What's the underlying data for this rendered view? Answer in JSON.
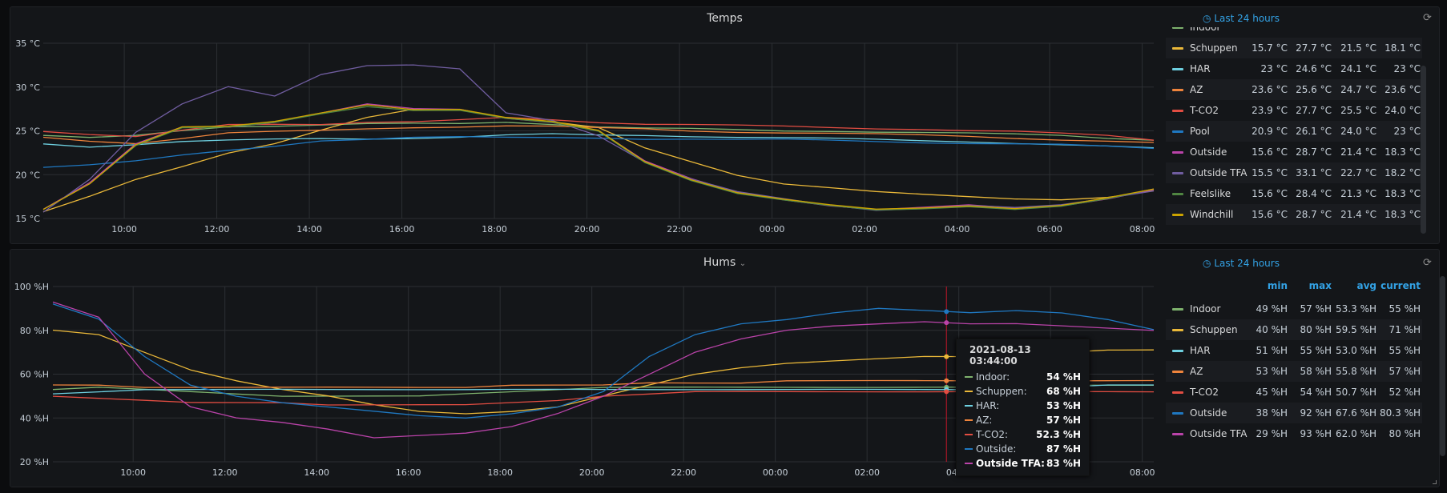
{
  "colors": {
    "Indoor": "#7eb26d",
    "Schuppen": "#eab839",
    "HAR": "#6ed0e0",
    "AZ": "#ef843c",
    "T-CO2": "#e24d42",
    "Pool": "#1f78c1",
    "Outside": "#ba43a9",
    "Outside TFA": "#705da0",
    "Feelslike": "#508642",
    "Windchill": "#cca300",
    "Outside_hum": "#1f78c1",
    "Outside TFA_hum": "#ba43a9",
    "accent": "#33a2e5"
  },
  "icons": {
    "clock": "clock-icon",
    "refresh": "refresh-icon",
    "chevron": "chevron-down-icon"
  },
  "temps": {
    "title": "Temps",
    "time_range": "Last 24 hours",
    "legend": {
      "rows": [
        {
          "name": "Indoor",
          "color": "#7eb26d",
          "min": "",
          "max": "",
          "avg": "",
          "current": ""
        },
        {
          "name": "Schuppen",
          "color": "#eab839",
          "min": "15.7 °C",
          "max": "27.7 °C",
          "avg": "21.5 °C",
          "current": "18.1 °C"
        },
        {
          "name": "HAR",
          "color": "#6ed0e0",
          "min": "23 °C",
          "max": "24.6 °C",
          "avg": "24.1 °C",
          "current": "23 °C"
        },
        {
          "name": "AZ",
          "color": "#ef843c",
          "min": "23.6 °C",
          "max": "25.6 °C",
          "avg": "24.7 °C",
          "current": "23.6 °C"
        },
        {
          "name": "T-CO2",
          "color": "#e24d42",
          "min": "23.9 °C",
          "max": "27.7 °C",
          "avg": "25.5 °C",
          "current": "24.0 °C"
        },
        {
          "name": "Pool",
          "color": "#1f78c1",
          "min": "20.9 °C",
          "max": "26.1 °C",
          "avg": "24.0 °C",
          "current": "23 °C"
        },
        {
          "name": "Outside",
          "color": "#ba43a9",
          "min": "15.6 °C",
          "max": "28.7 °C",
          "avg": "21.4 °C",
          "current": "18.3 °C"
        },
        {
          "name": "Outside TFA",
          "color": "#705da0",
          "min": "15.5 °C",
          "max": "33.1 °C",
          "avg": "22.7 °C",
          "current": "18.2 °C"
        },
        {
          "name": "Feelslike",
          "color": "#508642",
          "min": "15.6 °C",
          "max": "28.4 °C",
          "avg": "21.3 °C",
          "current": "18.3 °C"
        },
        {
          "name": "Windchill",
          "color": "#cca300",
          "min": "15.6 °C",
          "max": "28.7 °C",
          "avg": "21.4 °C",
          "current": "18.3 °C"
        }
      ]
    }
  },
  "hums": {
    "title": "Hums",
    "time_range": "Last 24 hours",
    "legend": {
      "headers": {
        "min": "min",
        "max": "max",
        "avg": "avg",
        "current": "current"
      },
      "rows": [
        {
          "name": "Indoor",
          "color": "#7eb26d",
          "min": "49 %H",
          "max": "57 %H",
          "avg": "53.3 %H",
          "current": "55 %H"
        },
        {
          "name": "Schuppen",
          "color": "#eab839",
          "min": "40 %H",
          "max": "80 %H",
          "avg": "59.5 %H",
          "current": "71 %H"
        },
        {
          "name": "HAR",
          "color": "#6ed0e0",
          "min": "51 %H",
          "max": "55 %H",
          "avg": "53.0 %H",
          "current": "55 %H"
        },
        {
          "name": "AZ",
          "color": "#ef843c",
          "min": "53 %H",
          "max": "58 %H",
          "avg": "55.8 %H",
          "current": "57 %H"
        },
        {
          "name": "T-CO2",
          "color": "#e24d42",
          "min": "45 %H",
          "max": "54 %H",
          "avg": "50.7 %H",
          "current": "52 %H"
        },
        {
          "name": "Outside",
          "color": "#1f78c1",
          "min": "38 %H",
          "max": "92 %H",
          "avg": "67.6 %H",
          "current": "80.3 %H"
        },
        {
          "name": "Outside TFA",
          "color": "#ba43a9",
          "min": "29 %H",
          "max": "93 %H",
          "avg": "62.0 %H",
          "current": "80 %H"
        }
      ]
    },
    "tooltip": {
      "time": "2021-08-13 03:44:00",
      "hover_hour_offset": 19.48,
      "rows": [
        {
          "name": "Indoor:",
          "color": "#7eb26d",
          "value": "54 %H"
        },
        {
          "name": "Schuppen:",
          "color": "#eab839",
          "value": "68 %H"
        },
        {
          "name": "HAR:",
          "color": "#6ed0e0",
          "value": "53 %H"
        },
        {
          "name": "AZ:",
          "color": "#ef843c",
          "value": "57 %H"
        },
        {
          "name": "T-CO2:",
          "color": "#e24d42",
          "value": "52.3 %H"
        },
        {
          "name": "Outside:",
          "color": "#1f78c1",
          "value": "87 %H"
        },
        {
          "name": "Outside TFA:",
          "color": "#ba43a9",
          "value": "83 %H",
          "bold": true
        }
      ]
    }
  },
  "chart_data": [
    {
      "type": "line",
      "title": "Temps",
      "x_start": "08:15",
      "x_step_hours": 1,
      "xticks": [
        "10:00",
        "12:00",
        "14:00",
        "16:00",
        "18:00",
        "20:00",
        "22:00",
        "00:00",
        "02:00",
        "04:00",
        "06:00",
        "08:00"
      ],
      "xtick_hour_offsets": [
        1.75,
        3.75,
        5.75,
        7.75,
        9.75,
        11.75,
        13.75,
        15.75,
        17.75,
        19.75,
        21.75,
        23.75
      ],
      "yticks": [
        "15 °C",
        "20 °C",
        "25 °C",
        "30 °C",
        "35 °C"
      ],
      "ytick_values": [
        15,
        20,
        25,
        30,
        35
      ],
      "ylim": [
        15,
        35
      ],
      "grid": true,
      "legend": "right",
      "series": [
        {
          "name": "Indoor",
          "color": "#7eb26d",
          "values": [
            24.5,
            24.2,
            24.4,
            25,
            25.5,
            25.6,
            25.7,
            25.8,
            25.8,
            25.8,
            26,
            25.8,
            25.5,
            25.3,
            25.2,
            25.1,
            25,
            25,
            24.9,
            24.8,
            24.7,
            24.6,
            24.5,
            24.2,
            24
          ]
        },
        {
          "name": "Schuppen",
          "color": "#eab839",
          "values": [
            15.7,
            17.5,
            19.5,
            21,
            22.5,
            23.5,
            25,
            26.5,
            27.5,
            27.5,
            26.5,
            26,
            25.3,
            23,
            21.5,
            20,
            19,
            18.5,
            18,
            17.7,
            17.5,
            17.3,
            17.2,
            17.4,
            18.1
          ]
        },
        {
          "name": "HAR",
          "color": "#6ed0e0",
          "values": [
            23.5,
            23.2,
            23.5,
            23.8,
            23.9,
            24,
            24.1,
            24.1,
            24.2,
            24.3,
            24.5,
            24.6,
            24.5,
            24.5,
            24.4,
            24.3,
            24.2,
            24.1,
            24,
            23.9,
            23.8,
            23.6,
            23.4,
            23.2,
            23
          ]
        },
        {
          "name": "AZ",
          "color": "#ef843c",
          "values": [
            24.2,
            23.8,
            23.6,
            24.2,
            24.8,
            24.9,
            25,
            25.2,
            25.4,
            25.5,
            25.6,
            25.5,
            25.3,
            25.2,
            25,
            24.9,
            24.8,
            24.7,
            24.6,
            24.5,
            24.4,
            24.2,
            24,
            23.8,
            23.6
          ]
        },
        {
          "name": "T-CO2",
          "color": "#e24d42",
          "values": [
            25,
            24.6,
            24.3,
            25,
            25.7,
            25.8,
            25.8,
            26,
            26,
            26.2,
            26.5,
            26.3,
            26,
            25.8,
            25.7,
            25.6,
            25.5,
            25.4,
            25.3,
            25.2,
            25,
            24.9,
            24.7,
            24.5,
            24
          ]
        },
        {
          "name": "Pool",
          "color": "#1f78c1",
          "values": [
            20.9,
            21.2,
            21.6,
            22.2,
            22.7,
            23.2,
            23.9,
            24.1,
            24.3,
            24.3,
            24.2,
            24.2,
            24.2,
            24.1,
            24.1,
            24,
            24,
            23.9,
            23.8,
            23.7,
            23.6,
            23.5,
            23.4,
            23.2,
            23
          ]
        },
        {
          "name": "Outside",
          "color": "#ba43a9",
          "values": [
            16,
            19,
            23.5,
            25.5,
            25.5,
            26,
            27,
            28,
            27.5,
            27.5,
            26.5,
            26,
            25,
            21.5,
            19.5,
            18,
            17.2,
            16.5,
            16,
            16.2,
            16.5,
            16.2,
            16.5,
            17.3,
            18.3
          ]
        },
        {
          "name": "Outside TFA",
          "color": "#705da0",
          "values": [
            15.8,
            19.5,
            24.8,
            28,
            30,
            29,
            31.5,
            32.5,
            32.5,
            32,
            27,
            26.2,
            24.5,
            21.5,
            19.5,
            18,
            17.2,
            16.5,
            16,
            16.2,
            16.5,
            16.2,
            16.5,
            17.3,
            18.2
          ]
        },
        {
          "name": "Feelslike",
          "color": "#508642",
          "values": [
            16,
            19,
            23.4,
            25.4,
            25.4,
            25.9,
            26.9,
            27.8,
            27.4,
            27.4,
            26.4,
            25.9,
            24.9,
            21.4,
            19.4,
            17.9,
            17.1,
            16.4,
            15.9,
            16.1,
            16.4,
            16.1,
            16.4,
            17.2,
            18.3
          ]
        },
        {
          "name": "Windchill",
          "color": "#cca300",
          "values": [
            16,
            19,
            23.5,
            25.5,
            25.5,
            26,
            27,
            28,
            27.5,
            27.5,
            26.5,
            26,
            25,
            21.5,
            19.5,
            18,
            17.2,
            16.5,
            16,
            16.2,
            16.5,
            16.2,
            16.5,
            17.3,
            18.3
          ]
        }
      ]
    },
    {
      "type": "line",
      "title": "Hums",
      "x_start": "08:15",
      "x_step_hours": 1,
      "xticks": [
        "10:00",
        "12:00",
        "14:00",
        "16:00",
        "18:00",
        "20:00",
        "22:00",
        "00:00",
        "02:00",
        "04:00",
        "06:00",
        "08:00"
      ],
      "xtick_hour_offsets": [
        1.75,
        3.75,
        5.75,
        7.75,
        9.75,
        11.75,
        13.75,
        15.75,
        17.75,
        19.75,
        21.75,
        23.75
      ],
      "yticks": [
        "20 %H",
        "40 %H",
        "60 %H",
        "80 %H",
        "100 %H"
      ],
      "ytick_values": [
        20,
        40,
        60,
        80,
        100
      ],
      "ylim": [
        20,
        100
      ],
      "grid": true,
      "legend": "right",
      "series": [
        {
          "name": "Indoor",
          "color": "#7eb26d",
          "values": [
            53,
            54,
            53,
            52,
            51,
            50,
            50,
            50,
            50,
            51,
            52,
            53,
            54,
            54,
            54,
            54,
            54,
            54,
            54,
            54,
            54,
            55,
            55,
            55,
            55
          ]
        },
        {
          "name": "Schuppen",
          "color": "#eab839",
          "values": [
            80,
            78,
            70,
            62,
            57,
            53,
            50,
            46,
            43,
            42,
            43,
            45,
            50,
            55,
            60,
            63,
            65,
            66,
            67,
            68,
            68,
            69,
            70,
            71,
            71
          ]
        },
        {
          "name": "HAR",
          "color": "#6ed0e0",
          "values": [
            51,
            52,
            53,
            53,
            53,
            53,
            53,
            53,
            53,
            53,
            53,
            53,
            53,
            53,
            53,
            53,
            53,
            53,
            53,
            53,
            53,
            54,
            54,
            55,
            55
          ]
        },
        {
          "name": "AZ",
          "color": "#ef843c",
          "values": [
            55,
            55,
            54,
            54,
            54,
            54,
            54,
            54,
            54,
            54,
            55,
            55,
            55,
            56,
            56,
            56,
            57,
            57,
            57,
            57,
            57,
            57,
            57,
            57,
            57
          ]
        },
        {
          "name": "T-CO2",
          "color": "#e24d42",
          "values": [
            50,
            49,
            48,
            47,
            47,
            47,
            46,
            46,
            46,
            46,
            47,
            48,
            50,
            51,
            52,
            52,
            52,
            52,
            52,
            52,
            52,
            52,
            52,
            52,
            52
          ]
        },
        {
          "name": "Outside",
          "color": "#1f78c1",
          "values": [
            92,
            85,
            68,
            55,
            50,
            47,
            45,
            43,
            41,
            40,
            42,
            45,
            52,
            68,
            78,
            83,
            85,
            88,
            90,
            89,
            88,
            89,
            88,
            85,
            80.3
          ]
        },
        {
          "name": "Outside TFA",
          "color": "#ba43a9",
          "values": [
            93,
            86,
            60,
            45,
            40,
            38,
            35,
            31,
            32,
            33,
            36,
            42,
            50,
            60,
            70,
            76,
            80,
            82,
            83,
            84,
            83,
            83,
            82,
            81,
            80
          ]
        }
      ]
    }
  ]
}
